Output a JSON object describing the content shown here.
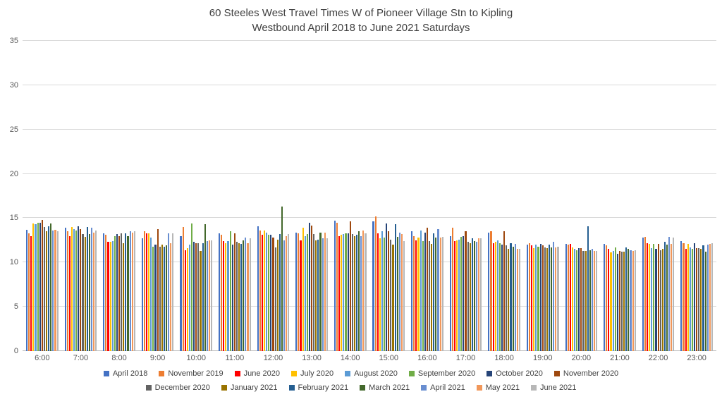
{
  "chart_data": {
    "type": "bar",
    "title": "60 Steeles West Travel Times W of Pioneer Village Stn to Kipling",
    "subtitle": "Westbound April 2018 to June 2021 Saturdays",
    "grid": true,
    "legend_position": "bottom",
    "legend_row_split": 8,
    "ylim": [
      0,
      35
    ],
    "yticks": [
      0,
      5,
      10,
      15,
      20,
      25,
      30,
      35
    ],
    "categories": [
      "6:00",
      "7:00",
      "8:00",
      "9:00",
      "10:00",
      "11:00",
      "12:00",
      "13:00",
      "14:00",
      "15:00",
      "16:00",
      "17:00",
      "18:00",
      "19:00",
      "20:00",
      "21:00",
      "22:00",
      "23:00"
    ],
    "series": [
      {
        "name": "April 2018",
        "color": "#4472C4",
        "values": [
          13.7,
          13.9,
          13.3,
          12.7,
          13.0,
          13.3,
          14.1,
          13.4,
          14.7,
          14.6,
          13.5,
          13.0,
          13.4,
          12.0,
          12.1,
          12.1,
          12.8,
          12.4
        ]
      },
      {
        "name": "November 2019",
        "color": "#ED7D31",
        "values": [
          13.3,
          13.5,
          13.1,
          13.5,
          14.0,
          13.1,
          13.6,
          13.3,
          14.5,
          15.2,
          13.0,
          13.9,
          13.5,
          12.2,
          12.0,
          11.9,
          12.9,
          12.2
        ]
      },
      {
        "name": "June 2020",
        "color": "#FF0000",
        "values": [
          13.0,
          13.0,
          12.3,
          13.3,
          11.4,
          12.4,
          13.1,
          12.5,
          13.0,
          13.3,
          12.5,
          12.4,
          12.2,
          11.9,
          12.1,
          11.5,
          12.2,
          11.5
        ]
      },
      {
        "name": "July 2020",
        "color": "#FFC000",
        "values": [
          14.4,
          14.0,
          12.3,
          13.3,
          11.6,
          12.2,
          13.6,
          13.9,
          13.1,
          12.7,
          12.8,
          12.5,
          12.3,
          11.6,
          11.7,
          11.1,
          12.1,
          12.1
        ]
      },
      {
        "name": "August 2020",
        "color": "#5B9BD5",
        "values": [
          14.3,
          13.8,
          12.4,
          12.8,
          12.0,
          12.4,
          13.4,
          13.0,
          13.2,
          13.5,
          13.6,
          12.6,
          12.5,
          12.0,
          11.5,
          11.3,
          11.6,
          11.7
        ]
      },
      {
        "name": "September 2020",
        "color": "#70AD47",
        "values": [
          14.5,
          13.6,
          13.0,
          11.8,
          14.4,
          13.5,
          13.1,
          13.2,
          13.3,
          12.8,
          12.4,
          12.9,
          12.2,
          11.8,
          11.4,
          11.7,
          12.1,
          11.5
        ]
      },
      {
        "name": "October 2020",
        "color": "#264478",
        "values": [
          14.5,
          14.1,
          13.2,
          12.0,
          12.3,
          12.0,
          13.1,
          14.5,
          13.3,
          14.4,
          13.4,
          13.0,
          12.0,
          12.1,
          11.6,
          11.0,
          11.5,
          12.2
        ]
      },
      {
        "name": "November 2020",
        "color": "#9E480E",
        "values": [
          14.8,
          13.8,
          13.0,
          13.8,
          12.2,
          13.3,
          12.8,
          14.2,
          14.6,
          13.5,
          13.9,
          13.5,
          13.5,
          11.9,
          11.6,
          11.3,
          12.1,
          11.6
        ]
      },
      {
        "name": "December 2020",
        "color": "#636363",
        "values": [
          14.0,
          13.2,
          13.3,
          11.8,
          12.2,
          12.3,
          11.7,
          13.2,
          13.2,
          12.6,
          12.4,
          12.3,
          11.9,
          11.7,
          11.3,
          11.2,
          11.4,
          11.6
        ]
      },
      {
        "name": "January 2021",
        "color": "#997300",
        "values": [
          13.5,
          12.9,
          12.2,
          12.0,
          11.3,
          12.2,
          12.6,
          12.5,
          13.0,
          12.0,
          12.1,
          12.2,
          11.5,
          11.6,
          11.3,
          11.2,
          11.5,
          11.5
        ]
      },
      {
        "name": "February 2021",
        "color": "#255E91",
        "values": [
          14.1,
          14.0,
          13.3,
          11.8,
          12.2,
          12.1,
          13.2,
          12.6,
          13.1,
          14.3,
          13.3,
          12.7,
          12.2,
          12.0,
          14.1,
          11.7,
          12.3,
          11.9
        ]
      },
      {
        "name": "March 2021",
        "color": "#43682B",
        "values": [
          14.4,
          13.2,
          13.0,
          11.9,
          14.3,
          12.5,
          16.3,
          13.4,
          13.5,
          12.9,
          12.8,
          12.4,
          11.8,
          11.7,
          11.4,
          11.5,
          12.0,
          11.2
        ]
      },
      {
        "name": "April 2021",
        "color": "#698ED0",
        "values": [
          13.6,
          13.9,
          13.5,
          13.3,
          12.4,
          12.8,
          12.5,
          12.7,
          13.0,
          13.4,
          13.8,
          12.3,
          12.1,
          12.3,
          11.5,
          11.4,
          12.9,
          12.0
        ]
      },
      {
        "name": "May 2021",
        "color": "#F1975A",
        "values": [
          13.7,
          13.4,
          13.4,
          12.2,
          12.5,
          12.2,
          13.0,
          13.4,
          13.6,
          13.2,
          12.8,
          12.7,
          11.5,
          11.7,
          11.3,
          11.3,
          12.1,
          12.1
        ]
      },
      {
        "name": "June 2021",
        "color": "#B7B7B7",
        "values": [
          13.5,
          13.6,
          13.5,
          13.3,
          12.5,
          12.7,
          13.2,
          12.7,
          13.3,
          12.4,
          12.9,
          12.7,
          11.5,
          11.8,
          11.3,
          11.4,
          12.8,
          12.2
        ]
      }
    ]
  }
}
